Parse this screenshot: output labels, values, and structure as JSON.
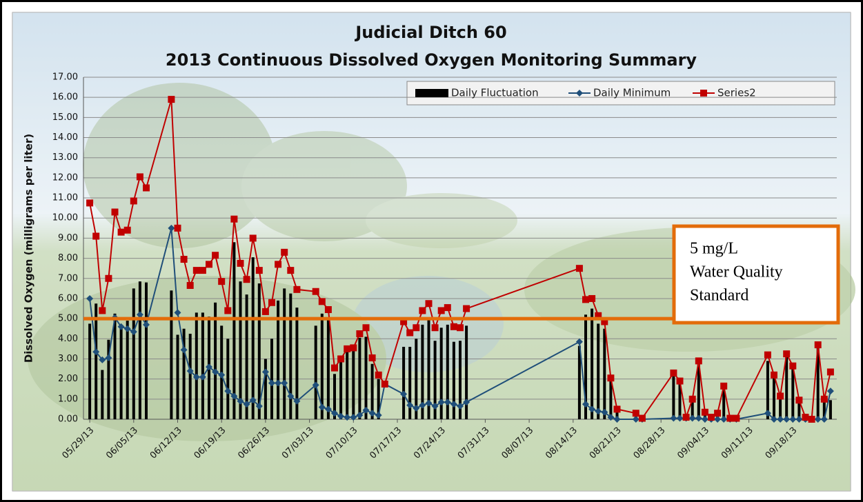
{
  "chart_data": {
    "type": "line",
    "title": [
      "Judicial Ditch 60",
      "2013 Continuous Dissolved Oxygen Monitoring Summary"
    ],
    "y_label": "Dissolved Oxygen (milligrams per liter)",
    "annotation": [
      "5 mg/L",
      "Water Quality",
      "Standard"
    ],
    "threshold": 5,
    "threshold_color": "#e36c0a",
    "grid": true,
    "legend": "top-right",
    "ylim": [
      0,
      17
    ],
    "yticks": [
      {
        "value": 0,
        "label": "0.00"
      },
      {
        "value": 1,
        "label": "1.00"
      },
      {
        "value": 2,
        "label": "2.00"
      },
      {
        "value": 3,
        "label": "3.00"
      },
      {
        "value": 4,
        "label": "4.00"
      },
      {
        "value": 5,
        "label": "5.00"
      },
      {
        "value": 6,
        "label": "6.00"
      },
      {
        "value": 7,
        "label": "7.00"
      },
      {
        "value": 8,
        "label": "8.00"
      },
      {
        "value": 9,
        "label": "9.00"
      },
      {
        "value": 10,
        "label": "10.00"
      },
      {
        "value": 11,
        "label": "11.00"
      },
      {
        "value": 12,
        "label": "12.00"
      },
      {
        "value": 13,
        "label": "13.00"
      },
      {
        "value": 14,
        "label": "14.00"
      },
      {
        "value": 15,
        "label": "15.00"
      },
      {
        "value": 16,
        "label": "16.00"
      },
      {
        "value": 17,
        "label": "17.00"
      }
    ],
    "xlim": [
      "05/28/13",
      "09/25/13"
    ],
    "xticks": [
      "05/29/13",
      "06/05/13",
      "06/12/13",
      "06/19/13",
      "06/26/13",
      "07/03/13",
      "07/10/13",
      "07/17/13",
      "07/24/13",
      "07/31/13",
      "08/07/13",
      "08/14/13",
      "08/21/13",
      "08/28/13",
      "09/04/13",
      "09/11/13",
      "09/18/13"
    ],
    "x": [
      "05/29/13",
      "05/30/13",
      "05/31/13",
      "06/01/13",
      "06/02/13",
      "06/03/13",
      "06/04/13",
      "06/05/13",
      "06/06/13",
      "06/07/13",
      "06/11/13",
      "06/12/13",
      "06/13/13",
      "06/14/13",
      "06/15/13",
      "06/16/13",
      "06/17/13",
      "06/18/13",
      "06/19/13",
      "06/20/13",
      "06/21/13",
      "06/22/13",
      "06/23/13",
      "06/24/13",
      "06/25/13",
      "06/26/13",
      "06/27/13",
      "06/28/13",
      "06/29/13",
      "06/30/13",
      "07/01/13",
      "07/04/13",
      "07/05/13",
      "07/06/13",
      "07/07/13",
      "07/08/13",
      "07/09/13",
      "07/10/13",
      "07/11/13",
      "07/12/13",
      "07/13/13",
      "07/14/13",
      "07/15/13",
      "07/18/13",
      "07/19/13",
      "07/20/13",
      "07/21/13",
      "07/22/13",
      "07/23/13",
      "07/24/13",
      "07/25/13",
      "07/26/13",
      "07/27/13",
      "07/28/13",
      "08/15/13",
      "08/16/13",
      "08/17/13",
      "08/18/13",
      "08/19/13",
      "08/20/13",
      "08/21/13",
      "08/24/13",
      "08/25/13",
      "08/30/13",
      "08/31/13",
      "09/01/13",
      "09/02/13",
      "09/03/13",
      "09/04/13",
      "09/05/13",
      "09/06/13",
      "09/07/13",
      "09/08/13",
      "09/09/13",
      "09/14/13",
      "09/15/13",
      "09/16/13",
      "09/17/13",
      "09/18/13",
      "09/19/13",
      "09/20/13",
      "09/21/13",
      "09/22/13",
      "09/23/13",
      "09/24/13"
    ],
    "series": [
      {
        "name": "Daily Fluctuation",
        "type": "bar",
        "color": "#000000",
        "values": [
          4.75,
          5.75,
          2.45,
          3.95,
          5.25,
          4.7,
          4.9,
          6.5,
          6.85,
          6.8,
          6.4,
          4.2,
          4.5,
          4.25,
          5.3,
          5.3,
          5.1,
          5.8,
          4.65,
          4.0,
          8.8,
          6.85,
          6.2,
          8.05,
          6.75,
          3.0,
          4.0,
          5.9,
          6.5,
          6.25,
          5.55,
          4.65,
          5.25,
          4.95,
          2.25,
          2.85,
          3.4,
          3.45,
          4.05,
          4.1,
          2.75,
          2.0,
          0,
          3.6,
          3.6,
          4.0,
          4.7,
          4.95,
          3.9,
          4.55,
          4.7,
          3.85,
          3.9,
          4.65,
          3.65,
          5.2,
          5.5,
          4.75,
          4.5,
          1.95,
          0.5,
          0.3,
          0.05,
          2.25,
          1.85,
          0.05,
          0.95,
          2.85,
          0.35,
          0.1,
          0.3,
          1.65,
          0.05,
          0.05,
          2.9,
          2.2,
          1.15,
          3.25,
          2.65,
          0.95,
          0.1,
          0,
          3.7,
          1.0,
          0.95
        ]
      },
      {
        "name": "Daily Minimum",
        "type": "line",
        "marker": "diamond",
        "color": "#1f4e79",
        "values": [
          6.0,
          3.35,
          2.95,
          3.05,
          5.05,
          4.6,
          4.5,
          4.35,
          5.2,
          4.7,
          9.5,
          5.3,
          3.45,
          2.4,
          2.1,
          2.1,
          2.6,
          2.35,
          2.2,
          1.4,
          1.15,
          0.9,
          0.75,
          0.95,
          0.65,
          2.35,
          1.8,
          1.8,
          1.8,
          1.15,
          0.9,
          1.7,
          0.6,
          0.5,
          0.3,
          0.15,
          0.1,
          0.1,
          0.2,
          0.45,
          0.3,
          0.2,
          1.75,
          1.25,
          0.7,
          0.55,
          0.7,
          0.8,
          0.65,
          0.85,
          0.85,
          0.75,
          0.65,
          0.85,
          3.85,
          0.75,
          0.5,
          0.4,
          0.35,
          0.1,
          0,
          0,
          0,
          0.05,
          0.05,
          0.05,
          0.05,
          0.05,
          0,
          0,
          0,
          0,
          0,
          0,
          0.3,
          0,
          0,
          0,
          0,
          0,
          0,
          0,
          0,
          0,
          1.4
        ]
      },
      {
        "name": "Series2",
        "type": "line",
        "marker": "square",
        "color": "#c00000",
        "values": [
          10.75,
          9.1,
          5.4,
          7.0,
          10.3,
          9.3,
          9.4,
          10.85,
          12.05,
          11.5,
          15.9,
          9.5,
          7.95,
          6.65,
          7.4,
          7.4,
          7.7,
          8.15,
          6.85,
          5.4,
          9.95,
          7.75,
          6.95,
          9.0,
          7.4,
          5.35,
          5.8,
          7.7,
          8.3,
          7.4,
          6.45,
          6.35,
          5.85,
          5.45,
          2.55,
          3.0,
          3.5,
          3.55,
          4.25,
          4.55,
          3.05,
          2.2,
          1.75,
          4.85,
          4.3,
          4.55,
          5.4,
          5.75,
          4.55,
          5.4,
          5.55,
          4.6,
          4.55,
          5.5,
          7.5,
          5.95,
          6.0,
          5.15,
          4.85,
          2.05,
          0.5,
          0.3,
          0.05,
          2.3,
          1.9,
          0.1,
          1.0,
          2.9,
          0.35,
          0.1,
          0.3,
          1.65,
          0.05,
          0.05,
          3.2,
          2.2,
          1.15,
          3.25,
          2.65,
          0.95,
          0.1,
          0.0,
          3.7,
          1.0,
          2.35
        ]
      }
    ]
  }
}
